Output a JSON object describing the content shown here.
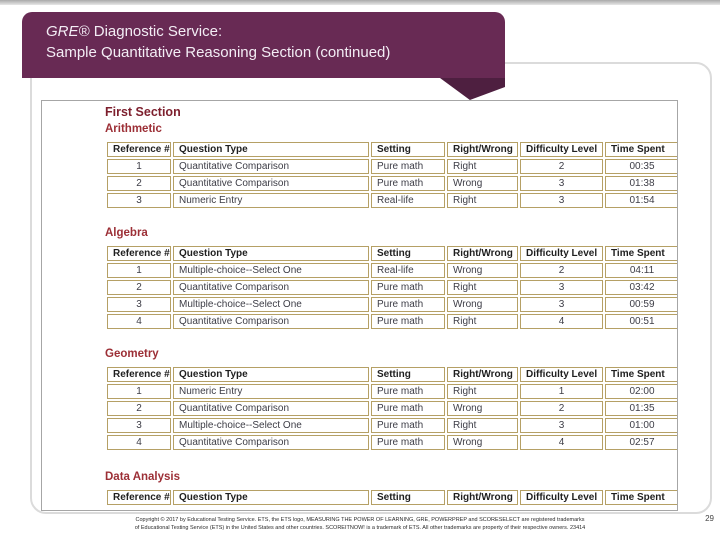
{
  "slide": {
    "banner": {
      "brand": "GRE®",
      "title_rest": " Diagnostic Service:",
      "title_line2": "Sample Quantitative Reasoning Section (continued)"
    },
    "footer": {
      "line1": "Copyright © 2017 by Educational Testing Service. ETS, the ETS logo, MEASURING THE POWER OF LEARNING, GRE, POWERPREP and SCORESELECT are registered trademarks",
      "line2": "of Educational Testing Service (ETS) in the United States and other countries. SCOREITNOW! is a trademark of ETS. All other trademarks are property of their respective owners. 23414"
    },
    "page_number": "29"
  },
  "report": {
    "section_title": "First Section",
    "columns": [
      "Reference #",
      "Question Type",
      "Setting",
      "Right/Wrong",
      "Difficulty Level",
      "Time Spent"
    ],
    "tables": [
      {
        "title": "Arithmetic",
        "rows": [
          [
            "1",
            "Quantitative Comparison",
            "Pure math",
            "Right",
            "2",
            "00:35"
          ],
          [
            "2",
            "Quantitative Comparison",
            "Pure math",
            "Wrong",
            "3",
            "01:38"
          ],
          [
            "3",
            "Numeric Entry",
            "Real-life",
            "Right",
            "3",
            "01:54"
          ]
        ]
      },
      {
        "title": "Algebra",
        "rows": [
          [
            "1",
            "Multiple-choice--Select One",
            "Real-life",
            "Wrong",
            "2",
            "04:11"
          ],
          [
            "2",
            "Quantitative Comparison",
            "Pure math",
            "Right",
            "3",
            "03:42"
          ],
          [
            "3",
            "Multiple-choice--Select One",
            "Pure math",
            "Wrong",
            "3",
            "00:59"
          ],
          [
            "4",
            "Quantitative Comparison",
            "Pure math",
            "Right",
            "4",
            "00:51"
          ]
        ]
      },
      {
        "title": "Geometry",
        "rows": [
          [
            "1",
            "Numeric Entry",
            "Pure math",
            "Right",
            "1",
            "02:00"
          ],
          [
            "2",
            "Quantitative Comparison",
            "Pure math",
            "Wrong",
            "2",
            "01:35"
          ],
          [
            "3",
            "Multiple-choice--Select One",
            "Pure math",
            "Right",
            "3",
            "01:00"
          ],
          [
            "4",
            "Quantitative Comparison",
            "Pure math",
            "Wrong",
            "4",
            "02:57"
          ]
        ]
      },
      {
        "title": "Data Analysis",
        "rows": []
      }
    ],
    "colors": {
      "banner_purple": "#682a54",
      "banner_fold": "#4e1f40",
      "table_border_tan": "#b5a065",
      "heading_maroon": "#9c2f36"
    }
  }
}
